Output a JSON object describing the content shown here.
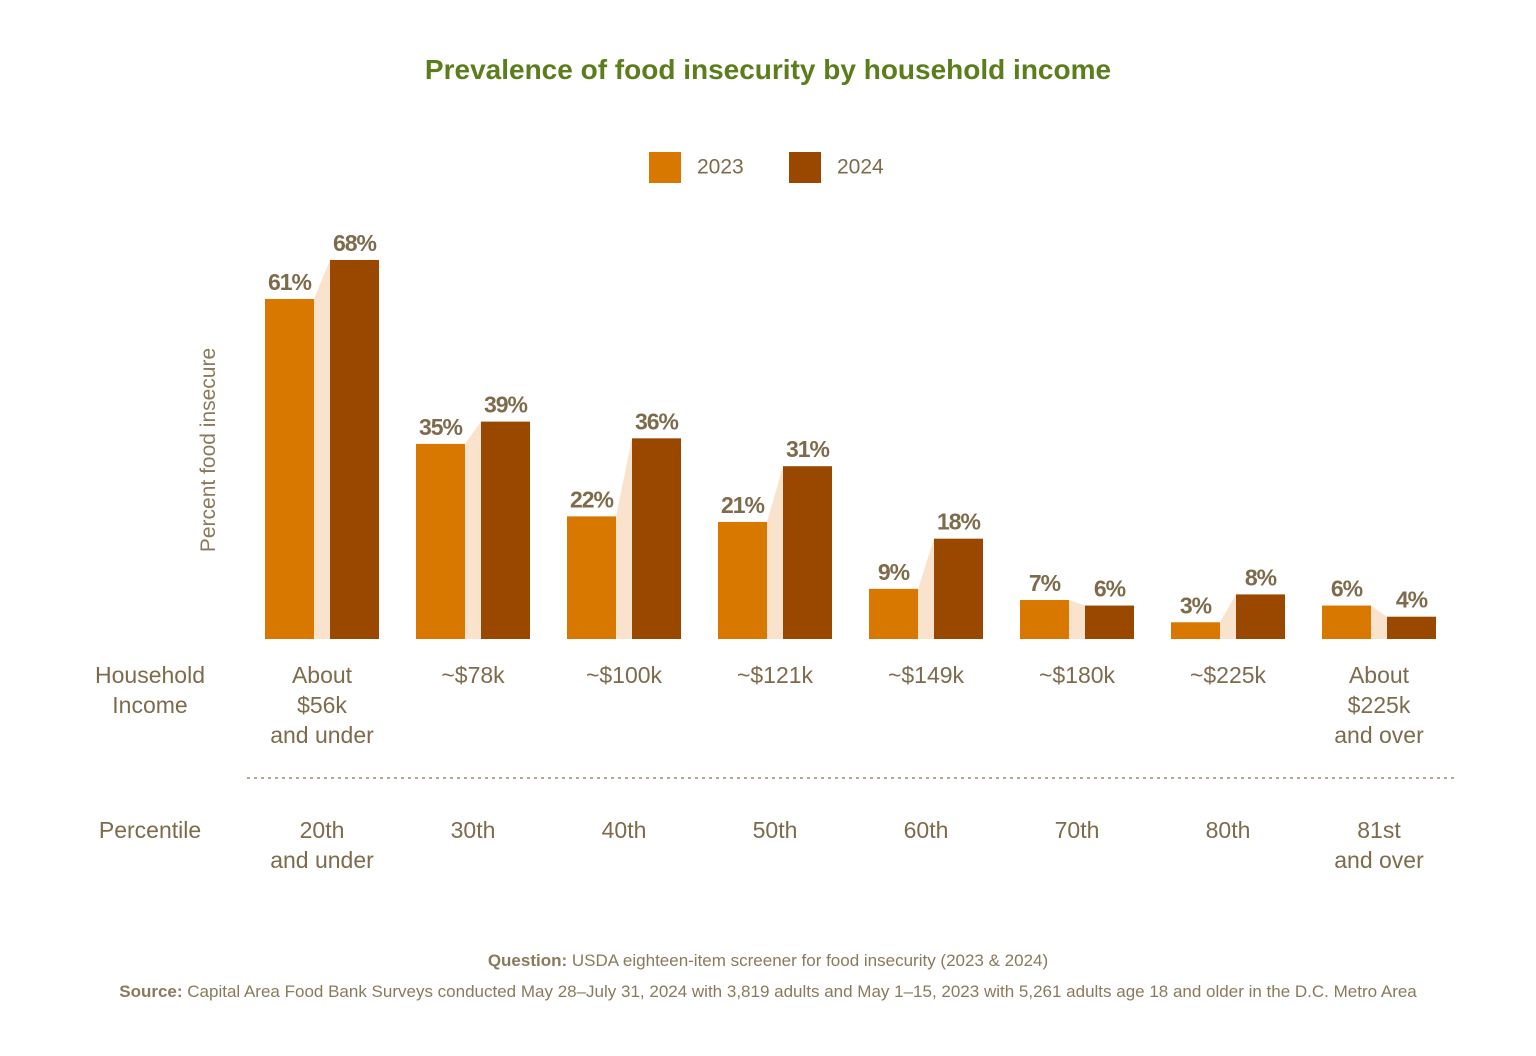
{
  "chart_data": {
    "type": "bar",
    "title": "Prevalence of food insecurity by household income",
    "y_label": "Percent food insecure",
    "categories": [
      "About\n$56k\nand under",
      "~$78k",
      "~$100k",
      "~$121k",
      "~$149k",
      "~$180k",
      "~$225k",
      "About\n$225k\nand over"
    ],
    "percentiles": [
      "20th\nand under",
      "30th",
      "40th",
      "50th",
      "60th",
      "70th",
      "80th",
      "81st\nand over"
    ],
    "row_labels": {
      "income": "Household\nIncome",
      "percentile": "Percentile"
    },
    "series": [
      {
        "name": "2023",
        "color": "#d97800",
        "values": [
          61,
          35,
          22,
          21,
          9,
          7,
          3,
          6
        ],
        "value_labels": [
          "61%",
          "35%",
          "22%",
          "21%",
          "9%",
          "7%",
          "3%",
          "6%"
        ]
      },
      {
        "name": "2024",
        "color": "#9a4700",
        "values": [
          68,
          39,
          36,
          31,
          18,
          6,
          8,
          4
        ],
        "value_labels": [
          "68%",
          "39%",
          "36%",
          "31%",
          "18%",
          "6%",
          "8%",
          "4%"
        ]
      }
    ],
    "connector_color": "#fae3cc",
    "question": {
      "label": "Question:",
      "text": "USDA eighteen-item screener for food insecurity (2023 & 2024)"
    },
    "source": {
      "label": "Source:",
      "text": "Capital Area Food Bank Surveys conducted May 28–July 31, 2024 with 3,819 adults and May 1–15, 2023 with 5,261 adults age 18 and older in the D.C. Metro Area"
    }
  }
}
